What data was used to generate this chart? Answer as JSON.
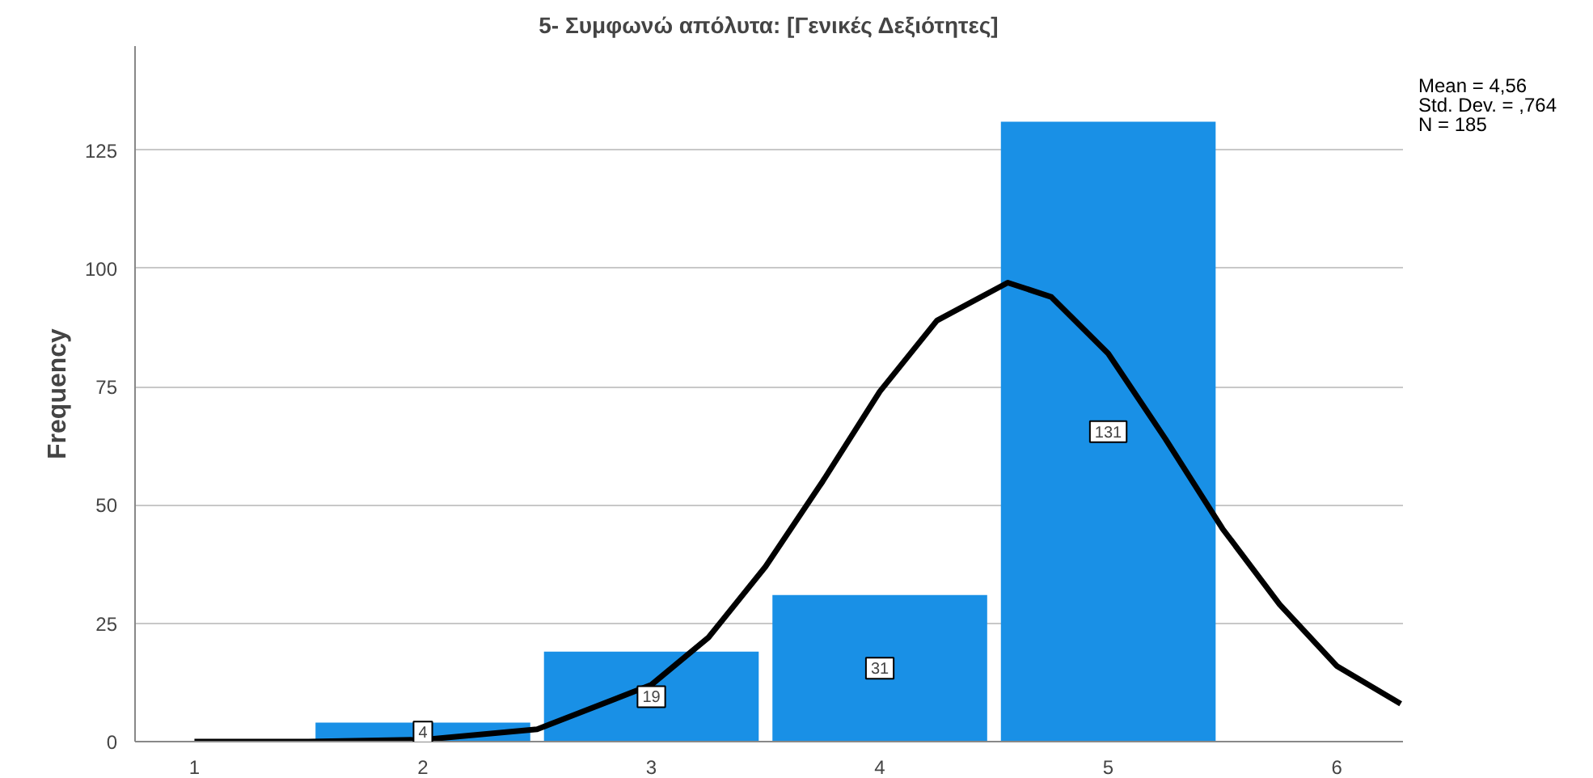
{
  "chart_data": {
    "type": "histogram",
    "title": "5- Συμφωνώ απόλυτα: [Γενικές Δεξιότητες]",
    "ylabel": "Frequency",
    "bins": [
      1.5,
      2.5,
      3.5,
      4.5,
      5.5
    ],
    "values": [
      4,
      19,
      31,
      131
    ],
    "color": "#1990e6",
    "value_labels": [
      "4",
      "19",
      "31",
      "131"
    ],
    "series": [
      {
        "type": "line",
        "color": "#000000",
        "x": [
          1,
          1.5,
          2,
          2.5,
          3,
          3.25,
          3.5,
          3.75,
          4,
          4.25,
          4.56,
          4.75,
          5,
          5.25,
          5.5,
          5.75,
          6,
          6.28
        ],
        "values": [
          0,
          0,
          0.4,
          2.6,
          12,
          22,
          37,
          55,
          74,
          89,
          97,
          94,
          82,
          64,
          45,
          29,
          16,
          8
        ]
      }
    ],
    "annotations": [
      "Mean = 4,56",
      "Std. Dev. = ,764",
      "N = 185"
    ],
    "xlim": [
      0.74,
      6.29
    ],
    "xticks": [
      1,
      2,
      3,
      4,
      5,
      6
    ],
    "ylim": [
      0,
      147
    ],
    "yticks": [
      0,
      25,
      50,
      75,
      100,
      125
    ],
    "grid": "y"
  }
}
